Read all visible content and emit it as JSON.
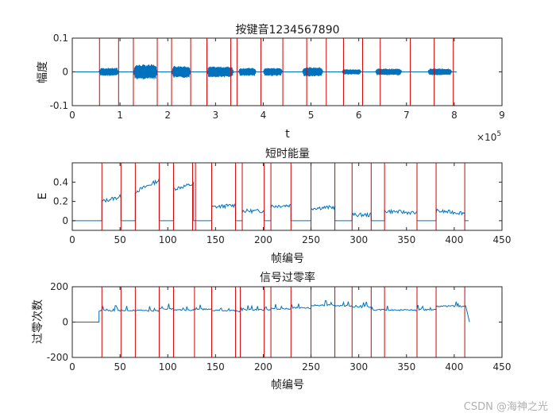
{
  "watermark": "CSDN @海神之光",
  "colors": {
    "signal": "#0072bd",
    "marker": "#d40000",
    "axis": "#262626",
    "background": "#ffffff"
  },
  "chart_data": [
    {
      "type": "line",
      "title": "按键音1234567890",
      "xlabel": "t",
      "ylabel": "幅度",
      "xlim": [
        0,
        900000
      ],
      "ylim": [
        -0.1,
        0.1
      ],
      "x_ticks": [
        0,
        100000,
        200000,
        300000,
        400000,
        500000,
        600000,
        700000,
        800000,
        900000
      ],
      "x_tick_labels": [
        "0",
        "1",
        "2",
        "3",
        "4",
        "5",
        "6",
        "7",
        "8",
        "9"
      ],
      "x_exponent_label": "×10",
      "x_exponent": "5",
      "y_ticks": [
        -0.1,
        0,
        0.1
      ],
      "y_tick_labels": [
        "-0.1",
        "0",
        "0.1"
      ],
      "x_end": 805000,
      "tone_segments": [
        [
          56000,
          97000,
          0.012
        ],
        [
          128000,
          178000,
          0.022
        ],
        [
          208000,
          248000,
          0.018
        ],
        [
          282000,
          338000,
          0.016
        ],
        [
          348000,
          385000,
          0.012
        ],
        [
          400000,
          440000,
          0.012
        ],
        [
          482000,
          525000,
          0.014
        ],
        [
          565000,
          605000,
          0.008
        ],
        [
          635000,
          690000,
          0.01
        ],
        [
          745000,
          795000,
          0.01
        ]
      ],
      "markers": [
        57000,
        97000,
        128000,
        178000,
        208000,
        248000,
        282000,
        332000,
        345000,
        395000,
        441000,
        491000,
        532000,
        568000,
        608000,
        645000,
        708000,
        758000,
        798000
      ]
    },
    {
      "type": "line",
      "title": "短时能量",
      "xlabel": "帧编号",
      "ylabel": "E",
      "xlim": [
        0,
        450
      ],
      "ylim": [
        -0.1,
        0.6
      ],
      "x_ticks": [
        0,
        50,
        100,
        150,
        200,
        250,
        300,
        350,
        400,
        450
      ],
      "x_tick_labels": [
        "0",
        "50",
        "100",
        "150",
        "200",
        "250",
        "300",
        "350",
        "400",
        "450"
      ],
      "y_ticks": [
        0,
        0.2,
        0.4
      ],
      "y_tick_labels": [
        "0",
        "0.2",
        "0.4"
      ],
      "baseline": 0,
      "x_end": 415,
      "segments": [
        [
          31,
          51,
          0.2,
          0.25
        ],
        [
          66,
          91,
          0.3,
          0.42
        ],
        [
          106,
          127,
          0.33,
          0.38
        ],
        [
          146,
          171,
          0.14,
          0.16
        ],
        [
          178,
          201,
          0.1,
          0.1
        ],
        [
          208,
          229,
          0.15,
          0.16
        ],
        [
          250,
          275,
          0.13,
          0.14
        ],
        [
          293,
          313,
          0.06,
          0.06
        ],
        [
          327,
          361,
          0.1,
          0.08
        ],
        [
          381,
          411,
          0.1,
          0.08
        ]
      ],
      "markers": [
        31,
        51,
        66,
        91,
        106,
        126,
        129,
        146,
        171,
        178,
        201,
        208,
        229,
        250,
        275,
        293,
        313,
        327,
        361,
        381,
        411
      ]
    },
    {
      "type": "line",
      "title": "信号过零率",
      "xlabel": "帧编号",
      "ylabel": "过零次数",
      "xlim": [
        0,
        450
      ],
      "ylim": [
        -200,
        200
      ],
      "x_ticks": [
        0,
        50,
        100,
        150,
        200,
        250,
        300,
        350,
        400,
        450
      ],
      "x_tick_labels": [
        "0",
        "50",
        "100",
        "150",
        "200",
        "250",
        "300",
        "350",
        "400",
        "450"
      ],
      "y_ticks": [
        -200,
        0,
        200
      ],
      "y_tick_labels": [
        "-200",
        "0",
        "200"
      ],
      "baseline": 0,
      "x_end": 416,
      "segments": [
        [
          28,
          51,
          65
        ],
        [
          51,
          66,
          67
        ],
        [
          66,
          91,
          65
        ],
        [
          91,
          106,
          75
        ],
        [
          106,
          127,
          68
        ],
        [
          127,
          146,
          72
        ],
        [
          146,
          171,
          65
        ],
        [
          171,
          178,
          62
        ],
        [
          178,
          201,
          70
        ],
        [
          201,
          208,
          68
        ],
        [
          208,
          229,
          75
        ],
        [
          229,
          250,
          80
        ],
        [
          250,
          275,
          95
        ],
        [
          275,
          293,
          92
        ],
        [
          293,
          313,
          85
        ],
        [
          313,
          327,
          70
        ],
        [
          327,
          361,
          68
        ],
        [
          361,
          381,
          70
        ],
        [
          381,
          412,
          90
        ]
      ],
      "markers": [
        31,
        51,
        66,
        91,
        106,
        128,
        146,
        171,
        176,
        201,
        208,
        229,
        250,
        275,
        293,
        313,
        327,
        361,
        381,
        411
      ]
    }
  ]
}
